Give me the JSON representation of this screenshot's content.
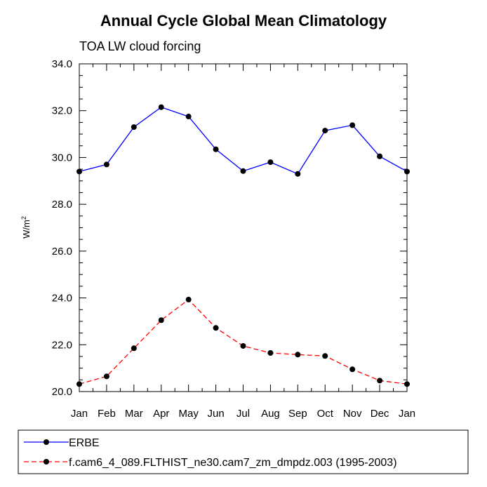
{
  "chart_data": {
    "type": "line",
    "title": "Annual Cycle Global Mean Climatology",
    "subtitle": "TOA LW cloud forcing",
    "xlabel": "",
    "ylabel": "W/m",
    "ylabel_superscript": "2",
    "ylim": [
      20.0,
      34.0
    ],
    "yticks": [
      "20.0",
      "22.0",
      "24.0",
      "26.0",
      "28.0",
      "30.0",
      "32.0",
      "34.0"
    ],
    "categories": [
      "Jan",
      "Feb",
      "Mar",
      "Apr",
      "May",
      "Jun",
      "Jul",
      "Aug",
      "Sep",
      "Oct",
      "Nov",
      "Dec",
      "Jan"
    ],
    "series": [
      {
        "name": "ERBE",
        "color": "#0000ff",
        "dash": "solid",
        "values": [
          29.4,
          29.7,
          31.3,
          32.15,
          31.75,
          30.35,
          29.42,
          29.8,
          29.3,
          31.15,
          31.38,
          30.05,
          29.4
        ]
      },
      {
        "name": "f.cam6_4_089.FLTHIST_ne30.cam7_zm_dmpdz.003 (1995-2003)",
        "color": "#ff0000",
        "dash": "dashed",
        "values": [
          20.32,
          20.65,
          21.85,
          23.05,
          23.93,
          22.72,
          21.95,
          21.65,
          21.58,
          21.52,
          20.95,
          20.47,
          20.32
        ]
      }
    ],
    "legend_position": "bottom"
  }
}
